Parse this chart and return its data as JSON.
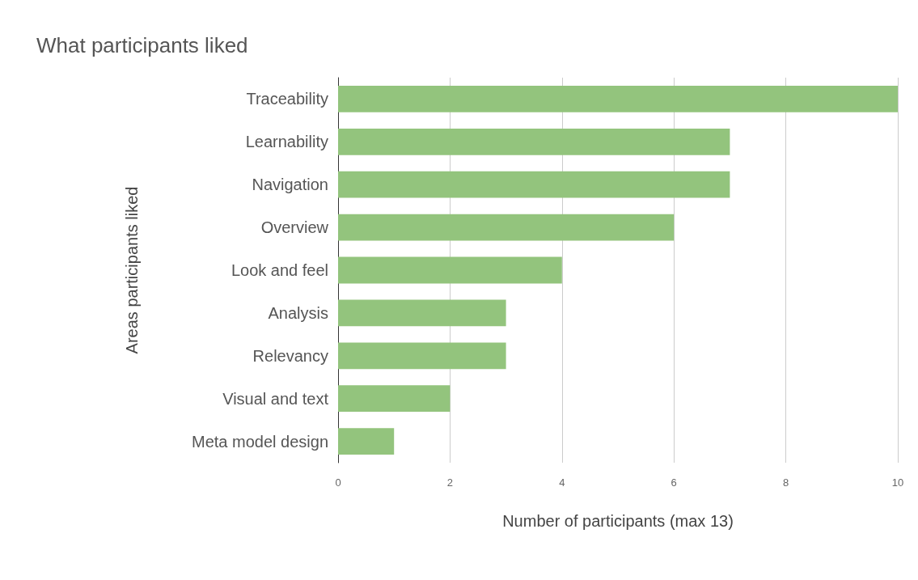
{
  "chart_data": {
    "type": "bar",
    "orientation": "horizontal",
    "title": "What participants liked",
    "xlabel": "Number of participants (max 13)",
    "ylabel": "Areas participants liked",
    "categories": [
      "Traceability",
      "Learnability",
      "Navigation",
      "Overview",
      "Look and feel",
      "Analysis",
      "Relevancy",
      "Visual and text",
      "Meta model design"
    ],
    "values": [
      10,
      7,
      7,
      6,
      4,
      3,
      3,
      2,
      1
    ],
    "color": "#93c47d",
    "xlim": [
      0,
      10
    ],
    "xticks": [
      0,
      2,
      4,
      6,
      8,
      10
    ],
    "grid": "x"
  }
}
